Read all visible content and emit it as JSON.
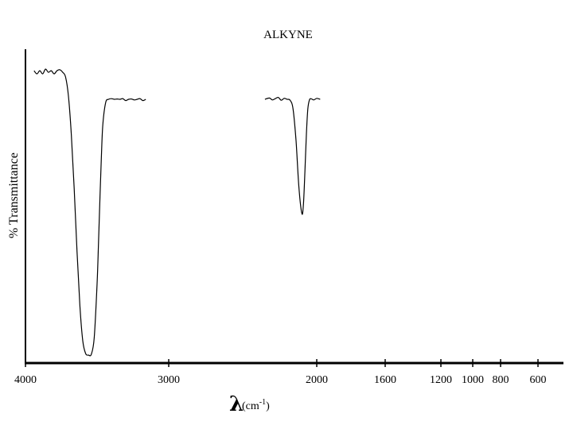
{
  "chart_data": {
    "type": "line",
    "title": "ALKYNE",
    "ylabel": "% Transmittance",
    "xlabel_symbol": "λ",
    "xlabel_unit": "(cm",
    "xlabel_unit_sup": "-1",
    "xlabel_unit_close": ")",
    "xlim": [
      4000,
      600
    ],
    "ylim": [
      0,
      100
    ],
    "grid": false,
    "x_axis_scale": "piecewise-linear",
    "x_ticks": [
      {
        "value": 4000,
        "label": "4000"
      },
      {
        "value": 3000,
        "label": "3000"
      },
      {
        "value": 2000,
        "label": "2000"
      },
      {
        "value": 1600,
        "label": "1600"
      },
      {
        "value": 1200,
        "label": "1200"
      },
      {
        "value": 1000,
        "label": "1000"
      },
      {
        "value": 800,
        "label": "800"
      },
      {
        "value": 600,
        "label": "600"
      }
    ],
    "series": [
      {
        "segment": 1,
        "x": [
          3940,
          3920,
          3900,
          3880,
          3860,
          3840,
          3820,
          3800,
          3780,
          3760,
          3740,
          3720,
          3700,
          3680,
          3660,
          3640,
          3620,
          3600,
          3580,
          3560,
          3540,
          3520,
          3500,
          3490,
          3480,
          3470,
          3460,
          3440,
          3420,
          3400,
          3380,
          3360,
          3340,
          3320,
          3300,
          3280,
          3260,
          3240,
          3220,
          3200,
          3180,
          3160
        ],
        "y": [
          92,
          91,
          92,
          91,
          92.5,
          91.5,
          92,
          91,
          92,
          92.3,
          91.5,
          90,
          84,
          72,
          55,
          35,
          18,
          7,
          3,
          2.5,
          2.8,
          8,
          25,
          38,
          52,
          65,
          75,
          82,
          83,
          83.2,
          83,
          83.1,
          83,
          83.2,
          82.6,
          83,
          83.1,
          82.8,
          83,
          83.2,
          82.6,
          83
        ]
      },
      {
        "segment": 2,
        "x": [
          2350,
          2320,
          2300,
          2280,
          2260,
          2240,
          2220,
          2200,
          2180,
          2160,
          2140,
          2120,
          2100,
          2090,
          2080,
          2070,
          2060,
          2050,
          2040,
          2020,
          2000,
          1980
        ],
        "y": [
          83,
          83.4,
          82.8,
          83.2,
          83.6,
          82.7,
          83.3,
          83,
          82.7,
          80,
          70,
          55,
          47,
          50,
          60,
          72,
          80,
          82.7,
          83.2,
          82.8,
          83.3,
          83
        ]
      }
    ]
  }
}
